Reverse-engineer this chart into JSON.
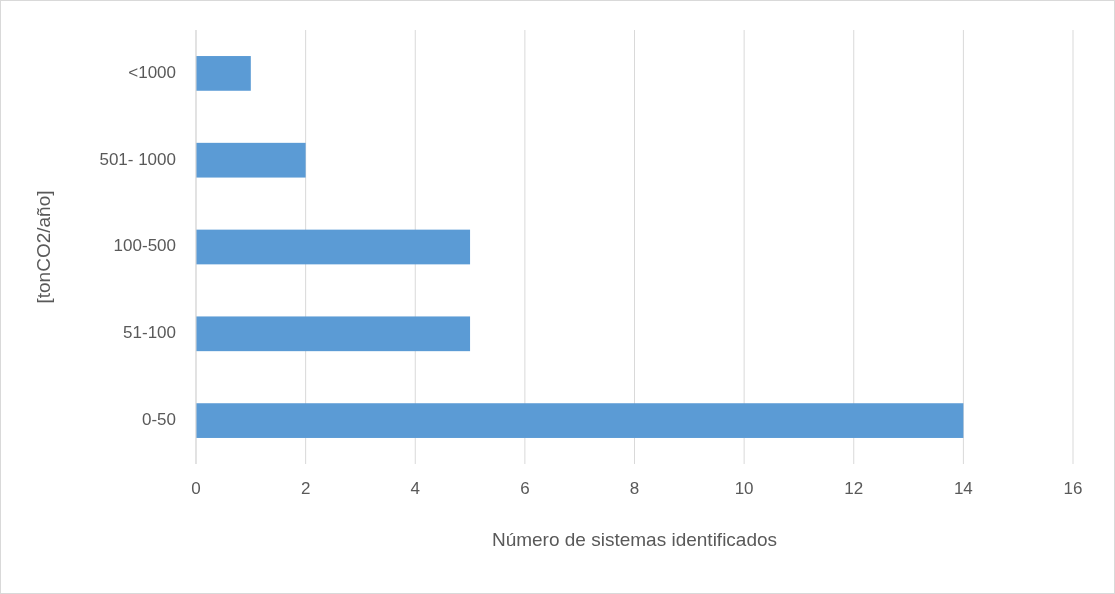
{
  "chart_data": {
    "type": "bar",
    "orientation": "horizontal",
    "categories": [
      "<1000",
      "501- 1000",
      "100-500",
      "51-100",
      "0-50"
    ],
    "values": [
      1,
      2,
      5,
      5,
      14
    ],
    "color": "#5b9bd5",
    "xlim": [
      0,
      16
    ],
    "xticks": [
      0,
      2,
      4,
      6,
      8,
      10,
      12,
      14,
      16
    ],
    "grid": "x",
    "xlabel": "Número de sistemas identificados",
    "ylabel": "[tonCO2/año]"
  }
}
